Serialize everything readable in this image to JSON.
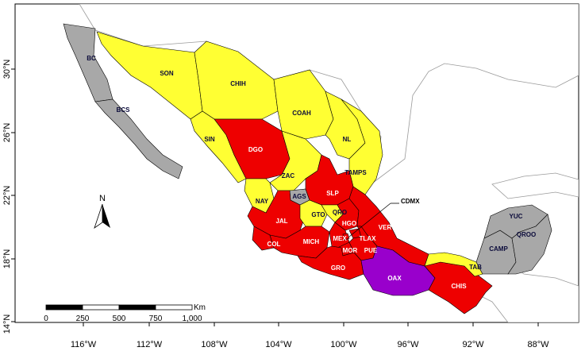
{
  "colors": {
    "yellow": "#ffff33",
    "red": "#ee0000",
    "purple": "#9900cc",
    "gray": "#a8a8a8",
    "other_land": "#ffffff",
    "sea": "#ffffff",
    "border": "#000000"
  },
  "axes": {
    "x_ticks": [
      "116°W",
      "112°W",
      "108°W",
      "104°W",
      "100°W",
      "96°W",
      "92°W",
      "88°W"
    ],
    "y_ticks": [
      "30°N",
      "26°N",
      "22°N",
      "18°N",
      "14°N"
    ]
  },
  "states": {
    "bc": {
      "label": "BC",
      "color": "gray"
    },
    "bcs": {
      "label": "BCS",
      "color": "gray"
    },
    "son": {
      "label": "SON",
      "color": "yellow"
    },
    "chih": {
      "label": "CHIH",
      "color": "yellow"
    },
    "coah": {
      "label": "COAH",
      "color": "yellow"
    },
    "sin": {
      "label": "SIN",
      "color": "yellow"
    },
    "dgo": {
      "label": "DGO",
      "color": "red"
    },
    "nl": {
      "label": "NL",
      "color": "yellow"
    },
    "tamps": {
      "label": "TAMPS",
      "color": "yellow"
    },
    "zac": {
      "label": "ZAC",
      "color": "yellow"
    },
    "nay": {
      "label": "NAY",
      "color": "yellow"
    },
    "ags": {
      "label": "AGS",
      "color": "gray"
    },
    "slp": {
      "label": "SLP",
      "color": "red"
    },
    "jal": {
      "label": "JAL",
      "color": "red"
    },
    "gto": {
      "label": "GTO",
      "color": "yellow"
    },
    "qro": {
      "label": "QRO",
      "color": "yellow"
    },
    "hgo": {
      "label": "HGO",
      "color": "red"
    },
    "ver": {
      "label": "VER",
      "color": "red"
    },
    "col": {
      "label": "COL",
      "color": "red"
    },
    "mich": {
      "label": "MICH",
      "color": "red"
    },
    "mex": {
      "label": "MEX",
      "color": "red"
    },
    "tlax": {
      "label": "TLAX",
      "color": "red"
    },
    "mor": {
      "label": "MOR",
      "color": "red"
    },
    "pue": {
      "label": "PUE",
      "color": "red"
    },
    "gro": {
      "label": "GRO",
      "color": "red"
    },
    "oax": {
      "label": "OAX",
      "color": "purple"
    },
    "chis": {
      "label": "CHIS",
      "color": "red"
    },
    "tab": {
      "label": "TAB",
      "color": "yellow"
    },
    "camp": {
      "label": "CAMP",
      "color": "gray"
    },
    "yuc": {
      "label": "YUC",
      "color": "gray"
    },
    "qroo": {
      "label": "QROO",
      "color": "gray"
    },
    "cdmx": {
      "label": "CDMX",
      "color": "red"
    }
  },
  "north_arrow": {
    "label": "N"
  },
  "scale_bar": {
    "unit": "Km",
    "labels": [
      "0",
      "250",
      "500",
      "750",
      "1,000"
    ]
  }
}
